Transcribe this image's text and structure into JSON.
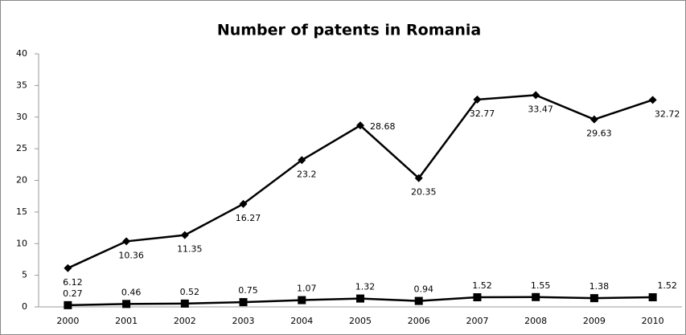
{
  "chart_data": {
    "type": "line",
    "title": "Number of patents in Romania",
    "categories": [
      "2000",
      "2001",
      "2002",
      "2003",
      "2004",
      "2005",
      "2006",
      "2007",
      "2008",
      "2009",
      "2010"
    ],
    "series": [
      {
        "color": "#000000",
        "marker": "diamond",
        "values": [
          6.12,
          10.36,
          11.35,
          16.27,
          23.2,
          28.68,
          20.35,
          32.77,
          33.47,
          29.63,
          32.72
        ]
      },
      {
        "color": "#000000",
        "marker": "square",
        "values": [
          0.27,
          0.46,
          0.52,
          0.75,
          1.07,
          1.32,
          0.94,
          1.52,
          1.55,
          1.38,
          1.52
        ]
      }
    ],
    "ylim": [
      0,
      40
    ],
    "yticks": [
      0,
      5,
      10,
      15,
      20,
      25,
      30,
      35,
      40
    ],
    "grid": false
  }
}
